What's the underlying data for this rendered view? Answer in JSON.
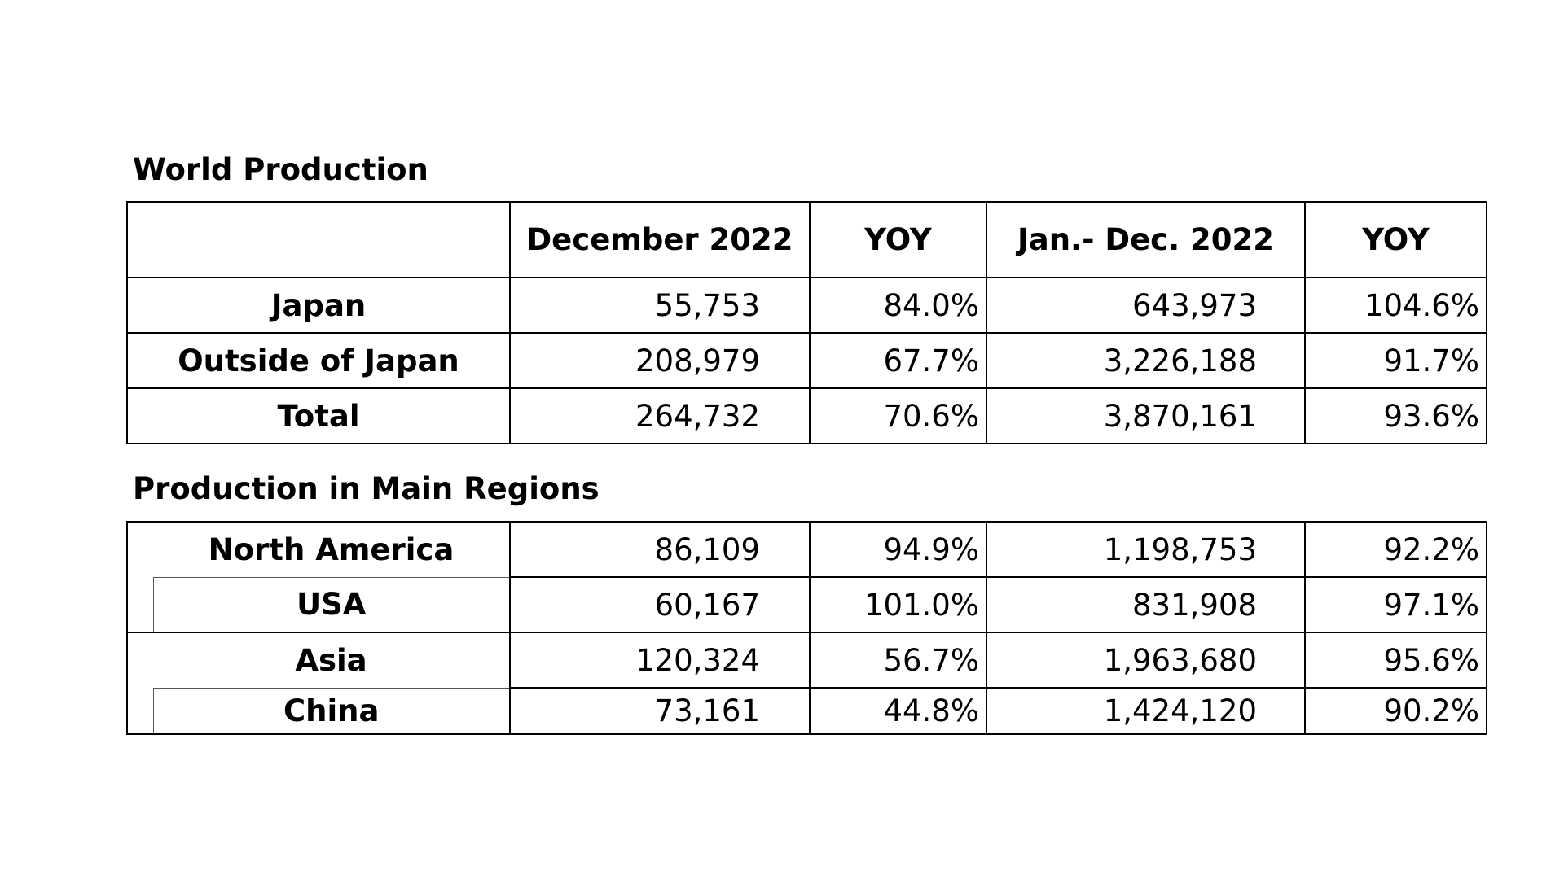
{
  "world": {
    "title": "World Production",
    "headers": [
      "",
      "December 2022",
      "YOY",
      "Jan.- Dec. 2022",
      "YOY"
    ],
    "rows": [
      {
        "label": "Japan",
        "dec": "55,753",
        "yoy": "84.0%",
        "jan_dec": "643,973",
        "yoy2": "104.6%"
      },
      {
        "label": "Outside of Japan",
        "dec": "208,979",
        "yoy": "67.7%",
        "jan_dec": "3,226,188",
        "yoy2": "91.7%"
      },
      {
        "label": "Total",
        "dec": "264,732",
        "yoy": "70.6%",
        "jan_dec": "3,870,161",
        "yoy2": "93.6%"
      }
    ]
  },
  "regions": {
    "title": "Production in Main Regions",
    "rows": [
      {
        "label": "North America",
        "dec": "86,109",
        "yoy": "94.9%",
        "jan_dec": "1,198,753",
        "yoy2": "92.2%"
      },
      {
        "label": "USA",
        "dec": "60,167",
        "yoy": "101.0%",
        "jan_dec": "831,908",
        "yoy2": "97.1%"
      },
      {
        "label": "Asia",
        "dec": "120,324",
        "yoy": "56.7%",
        "jan_dec": "1,963,680",
        "yoy2": "95.6%"
      },
      {
        "label": "China",
        "dec": "73,161",
        "yoy": "44.8%",
        "jan_dec": "1,424,120",
        "yoy2": "90.2%"
      }
    ]
  }
}
